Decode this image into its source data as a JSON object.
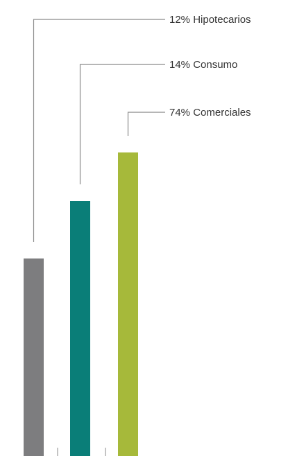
{
  "chart_data": {
    "type": "bar",
    "categories": [
      "Hipotecarios",
      "Consumo",
      "Comerciales"
    ],
    "labels": [
      "12% Hipotecarios",
      "14% Consumo",
      "74% Comerciales"
    ],
    "series": [
      {
        "values": [
          12,
          14,
          74
        ],
        "colors": [
          "#7d7d7f",
          "#0a7e78",
          "#a6b93a"
        ]
      }
    ],
    "title": "",
    "xlabel": "",
    "ylabel": "",
    "grid": false,
    "legend": "none",
    "leader_color": "#8a8a8a",
    "text_color": "#333333"
  }
}
